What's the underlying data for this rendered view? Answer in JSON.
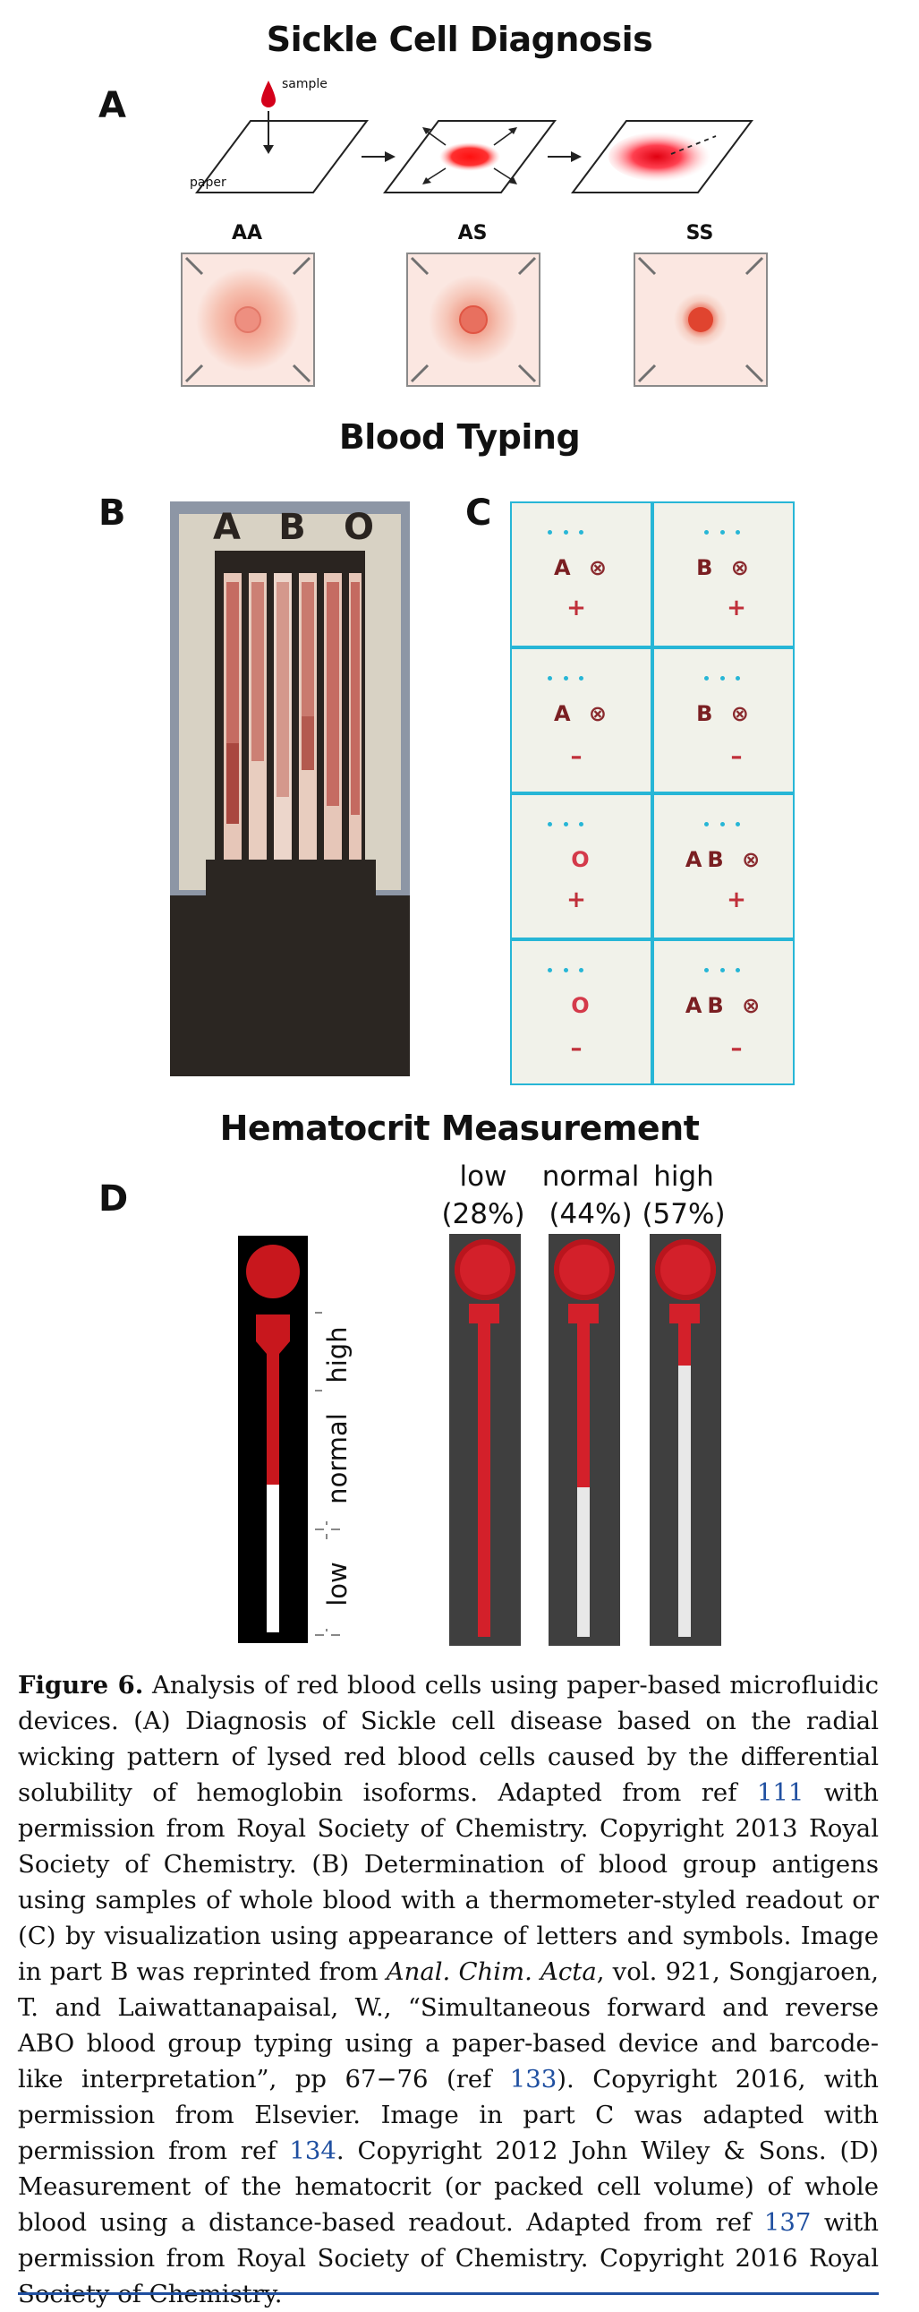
{
  "titles": {
    "sickle": "Sickle Cell Diagnosis",
    "blood": "Blood Typing",
    "hematocrit": "Hematocrit Measurement"
  },
  "panels": {
    "a": "A",
    "b": "B",
    "c": "C",
    "d": "D"
  },
  "panel_a": {
    "sample_label": "sample",
    "paper_label": "paper",
    "genotypes": [
      "AA",
      "AS",
      "SS"
    ]
  },
  "panel_b": {
    "letters": [
      "A",
      "B",
      "O"
    ]
  },
  "panel_c": {
    "cells": [
      {
        "letters": "A",
        "mark": "⊗",
        "sign": "+"
      },
      {
        "letters": "B",
        "mark": "⊗",
        "sign": "+"
      },
      {
        "letters": "A",
        "mark": "⊗",
        "sign": "–"
      },
      {
        "letters": "B",
        "mark": "⊗",
        "sign": "–"
      },
      {
        "letters": "",
        "mark": "O",
        "sign": "+"
      },
      {
        "letters": "AB",
        "mark": "⊗",
        "sign": "+"
      },
      {
        "letters": "",
        "mark": "O",
        "sign": "–"
      },
      {
        "letters": "AB",
        "mark": "⊗",
        "sign": "–"
      }
    ]
  },
  "panel_d": {
    "scale_labels": [
      "low",
      "normal",
      "high"
    ],
    "columns": [
      {
        "label": "low",
        "pct": "(28%)",
        "fill": 0.28
      },
      {
        "label": "normal",
        "pct": "(44%)",
        "fill": 0.44
      },
      {
        "label": "high",
        "pct": "(57%)",
        "fill": 0.57
      }
    ]
  },
  "caption": {
    "fig_label": "Figure 6.",
    "t1": " Analysis of red blood cells using paper-based microfluidic devices. (A) Diagnosis of Sickle cell disease based on the radial wicking pattern of lysed red blood cells caused by the differential solubility of hemoglobin isoforms. Adapted from ref ",
    "ref1": "111",
    "t2": " with permission from Royal Society of Chemistry. Copyright 2013 Royal Society of Chemistry. (B) Determination of blood group antigens using samples of whole blood with a thermometer-styled readout or (C) by visualization using appearance of letters and symbols. Image in part B was reprinted from ",
    "journal": "Anal. Chim. Acta",
    "t3": ", vol. 921, Songjaroen, T. and Laiwattanapaisal, W., “Simultaneous forward and reverse ABO blood group typing using a paper-based device and barcode-like interpretation”, pp 67−76 (ref ",
    "ref2": "133",
    "t4": "). Copyright 2016, with permission from Elsevier. Image in part C was adapted with permission from ref ",
    "ref3": "134",
    "t5": ". Copyright 2012 John Wiley & Sons. (D) Measurement of the hematocrit (or packed cell volume) of whole blood using a distance-based readout. Adapted from ref ",
    "ref4": "137",
    "t6": " with permission from Royal Society of Chemistry. Copyright 2016 Royal Society of Chemistry."
  },
  "colors": {
    "red": "#d42a2a",
    "cyan": "#27b6d6",
    "link": "#1f4fa0"
  }
}
